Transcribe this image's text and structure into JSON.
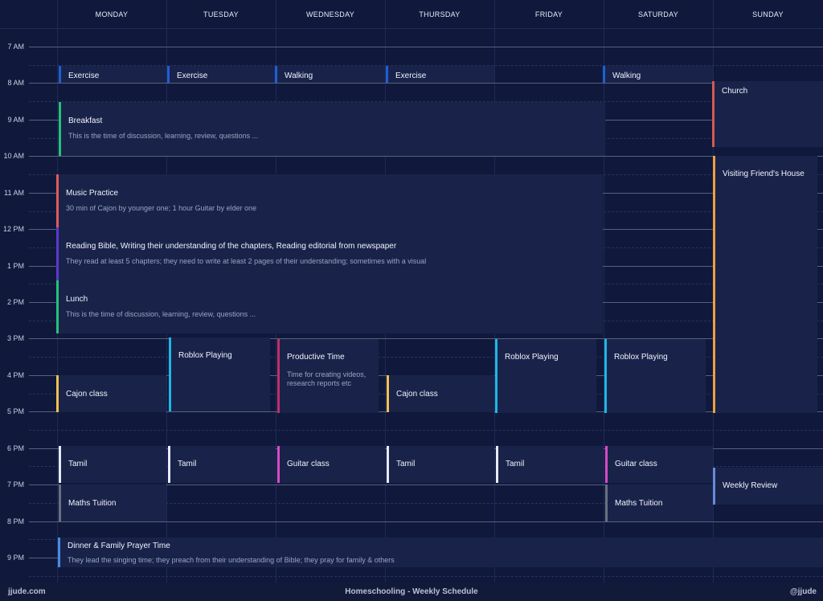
{
  "days": [
    "MONDAY",
    "TUESDAY",
    "WEDNESDAY",
    "THURSDAY",
    "FRIDAY",
    "SATURDAY",
    "SUNDAY"
  ],
  "hours": [
    "7 AM",
    "8 AM",
    "9 AM",
    "10 AM",
    "11 AM",
    "12 PM",
    "1 PM",
    "2 PM",
    "3 PM",
    "4 PM",
    "5 PM",
    "6 PM",
    "7 PM",
    "8 PM",
    "9 PM"
  ],
  "events": {
    "exercise_mon": {
      "title": "Exercise"
    },
    "exercise_tue": {
      "title": "Exercise"
    },
    "walking_wed": {
      "title": "Walking"
    },
    "exercise_thu": {
      "title": "Exercise"
    },
    "walking_sat": {
      "title": "Walking"
    },
    "church": {
      "title": "Church"
    },
    "breakfast": {
      "title": "Breakfast",
      "desc": "This is the time of discussion, learning, review, questions ..."
    },
    "visiting": {
      "title": "Visiting Friend's House"
    },
    "music": {
      "title": "Music Practice",
      "desc": "30 min of Cajon by younger one; 1 hour Guitar by elder one"
    },
    "bible": {
      "title": "Reading Bible, Writing their understanding of the chapters, Reading editorial from newspaper",
      "desc": "They read at least 5 chapters; they need to write at least 2 pages of their understanding; sometimes with a visual"
    },
    "lunch": {
      "title": "Lunch",
      "desc": "This is the time of discussion, learning, review, questions ..."
    },
    "roblox_tue": {
      "title": "Roblox Playing"
    },
    "productive": {
      "title": "Productive Time",
      "desc": "Time for creating videos, research reports etc"
    },
    "roblox_fri": {
      "title": "Roblox Playing"
    },
    "roblox_sat": {
      "title": "Roblox Playing"
    },
    "cajon_mon": {
      "title": "Cajon class"
    },
    "cajon_thu": {
      "title": "Cajon class"
    },
    "tamil_mon": {
      "title": "Tamil"
    },
    "tamil_tue": {
      "title": "Tamil"
    },
    "guitar_wed": {
      "title": "Guitar class"
    },
    "tamil_thu": {
      "title": "Tamil"
    },
    "tamil_fri": {
      "title": "Tamil"
    },
    "guitar_sat": {
      "title": "Guitar class"
    },
    "weekly_review": {
      "title": "Weekly Review"
    },
    "maths_mon": {
      "title": "Maths Tuition"
    },
    "maths_sat": {
      "title": "Maths Tuition"
    },
    "dinner": {
      "title": "Dinner & Family Prayer Time",
      "desc": "They lead the singing time; they preach from their understanding of Bible; they pray for family & others"
    }
  },
  "colors": {
    "exercise": "#1f5fd6",
    "church": "#d65a4e",
    "breakfast": "#22c37a",
    "visiting": "#f0a040",
    "music": "#e05a5a",
    "bible": "#5a3ad0",
    "lunch": "#22c37a",
    "roblox": "#1fb6e6",
    "productive": "#c0306a",
    "cajon": "#f0c050",
    "tamil": "#e6eaf5",
    "guitar": "#d84bc8",
    "weekly_review": "#6a8ad8",
    "maths": "#6a7080",
    "dinner": "#4a8ae8"
  },
  "footer": {
    "left": "jjude.com",
    "center": "Homeschooling - Weekly Schedule",
    "right": "@jjude"
  }
}
